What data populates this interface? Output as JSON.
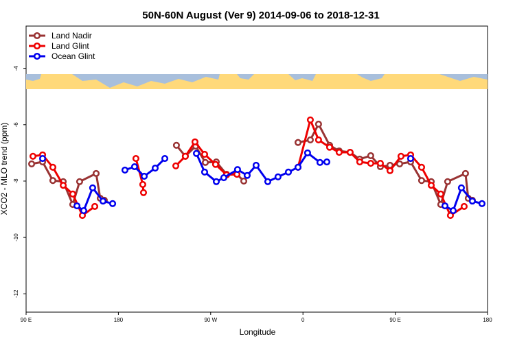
{
  "chart_data": {
    "type": "line",
    "title": "50N-60N August (Ver 9)   2014-09-06 to 2018-12-31",
    "x_label": "Longitude",
    "y_label": "XCO2 - MLO trend (ppm)",
    "xlim": [
      90,
      540
    ],
    "ylim": [
      -12.65,
      -2.5
    ],
    "xticks": [
      {
        "value": 90,
        "label": "90 E"
      },
      {
        "value": 180,
        "label": "180"
      },
      {
        "value": 270,
        "label": "90 W"
      },
      {
        "value": 360,
        "label": "0"
      },
      {
        "value": 450,
        "label": "90 E"
      },
      {
        "value": 540,
        "label": "180"
      }
    ],
    "yticks": [
      -4,
      -6,
      -8,
      -10,
      -12
    ],
    "legend": "top-left",
    "series": [
      {
        "name": "Land Nadir",
        "color": "#993333",
        "x": [
          95.4,
          106.1,
          116.1,
          126.2,
          135.5,
          142.2,
          158.3,
          162.3,
          166.3,
          null,
          236.6,
          245.3,
          255.4,
          264.8,
          275.5,
          285.5,
          295.6,
          302.3,
          null,
          355.2,
          367.2,
          375.2,
          386,
          395.3,
          406,
          415.4,
          426.1,
          435.5,
          444.9,
          454.3,
          465,
          475.7,
          485.1,
          494.4,
          501.1,
          518.5,
          521.2,
          525.2
        ],
        "values": [
          -7.39,
          -7.32,
          -7.98,
          -8.02,
          -8.83,
          -8.02,
          -7.73,
          -8.61,
          -8.68,
          null,
          -6.73,
          -7.12,
          -6.76,
          -7.34,
          -7.32,
          -7.76,
          -7.76,
          -8.0,
          null,
          -6.63,
          -6.54,
          -5.98,
          -6.73,
          -6.93,
          -6.98,
          -7.22,
          -7.1,
          -7.49,
          -7.44,
          -7.39,
          -7.32,
          -7.98,
          -8.02,
          -8.83,
          -8.02,
          -7.73,
          -8.61,
          -8.68
        ]
      },
      {
        "name": "Land Glint",
        "color": "#ee0000",
        "x": [
          96.7,
          106.1,
          116.1,
          126.2,
          135.5,
          144.9,
          157,
          null,
          197.1,
          203.8,
          204.5,
          null,
          236,
          245.3,
          254.7,
          264.1,
          274.8,
          285.5,
          295.6,
          null,
          355.2,
          367.2,
          375.2,
          386,
          395.3,
          406,
          415.4,
          426.1,
          435.5,
          444.9,
          455.6,
          465,
          475.7,
          485.1,
          494.4,
          503.8,
          517.2
        ],
        "values": [
          -7.12,
          -7.07,
          -7.51,
          -8.15,
          -8.46,
          -9.22,
          -8.9,
          null,
          -7.2,
          -8.12,
          -8.41,
          null,
          -7.46,
          -7.12,
          -6.61,
          -7.05,
          -7.41,
          -7.78,
          -7.76,
          null,
          -7.51,
          -5.83,
          -6.54,
          -6.8,
          -6.98,
          -6.98,
          -7.32,
          -7.37,
          -7.37,
          -7.63,
          -7.12,
          -7.07,
          -7.51,
          -8.15,
          -8.46,
          -9.22,
          -8.9
        ]
      },
      {
        "name": "Ocean Glint",
        "color": "#0000ee",
        "x": [
          106.1,
          null,
          139.6,
          146.2,
          154.9,
          165,
          174.4,
          null,
          186.4,
          195.8,
          205.2,
          215.9,
          225.3,
          null,
          256.1,
          264.1,
          275.5,
          282.8,
          296.2,
          305.6,
          314.3,
          325.7,
          335.7,
          345.8,
          355.2,
          364.5,
          376.6,
          383.3,
          null,
          465,
          null,
          498.5,
          506.5,
          514.5,
          525.2,
          534.6
        ],
        "values": [
          -7.2,
          null,
          -8.88,
          -9.05,
          -8.24,
          -8.71,
          -8.8,
          null,
          -7.61,
          -7.49,
          -7.83,
          -7.54,
          -7.2,
          null,
          -7.02,
          -7.68,
          -8.02,
          -7.88,
          -7.59,
          -7.8,
          -7.44,
          -8.02,
          -7.85,
          -7.68,
          -7.51,
          -7.0,
          -7.34,
          -7.32,
          null,
          -7.2,
          null,
          -8.88,
          -9.05,
          -8.24,
          -8.71,
          -8.8
        ]
      }
    ]
  }
}
